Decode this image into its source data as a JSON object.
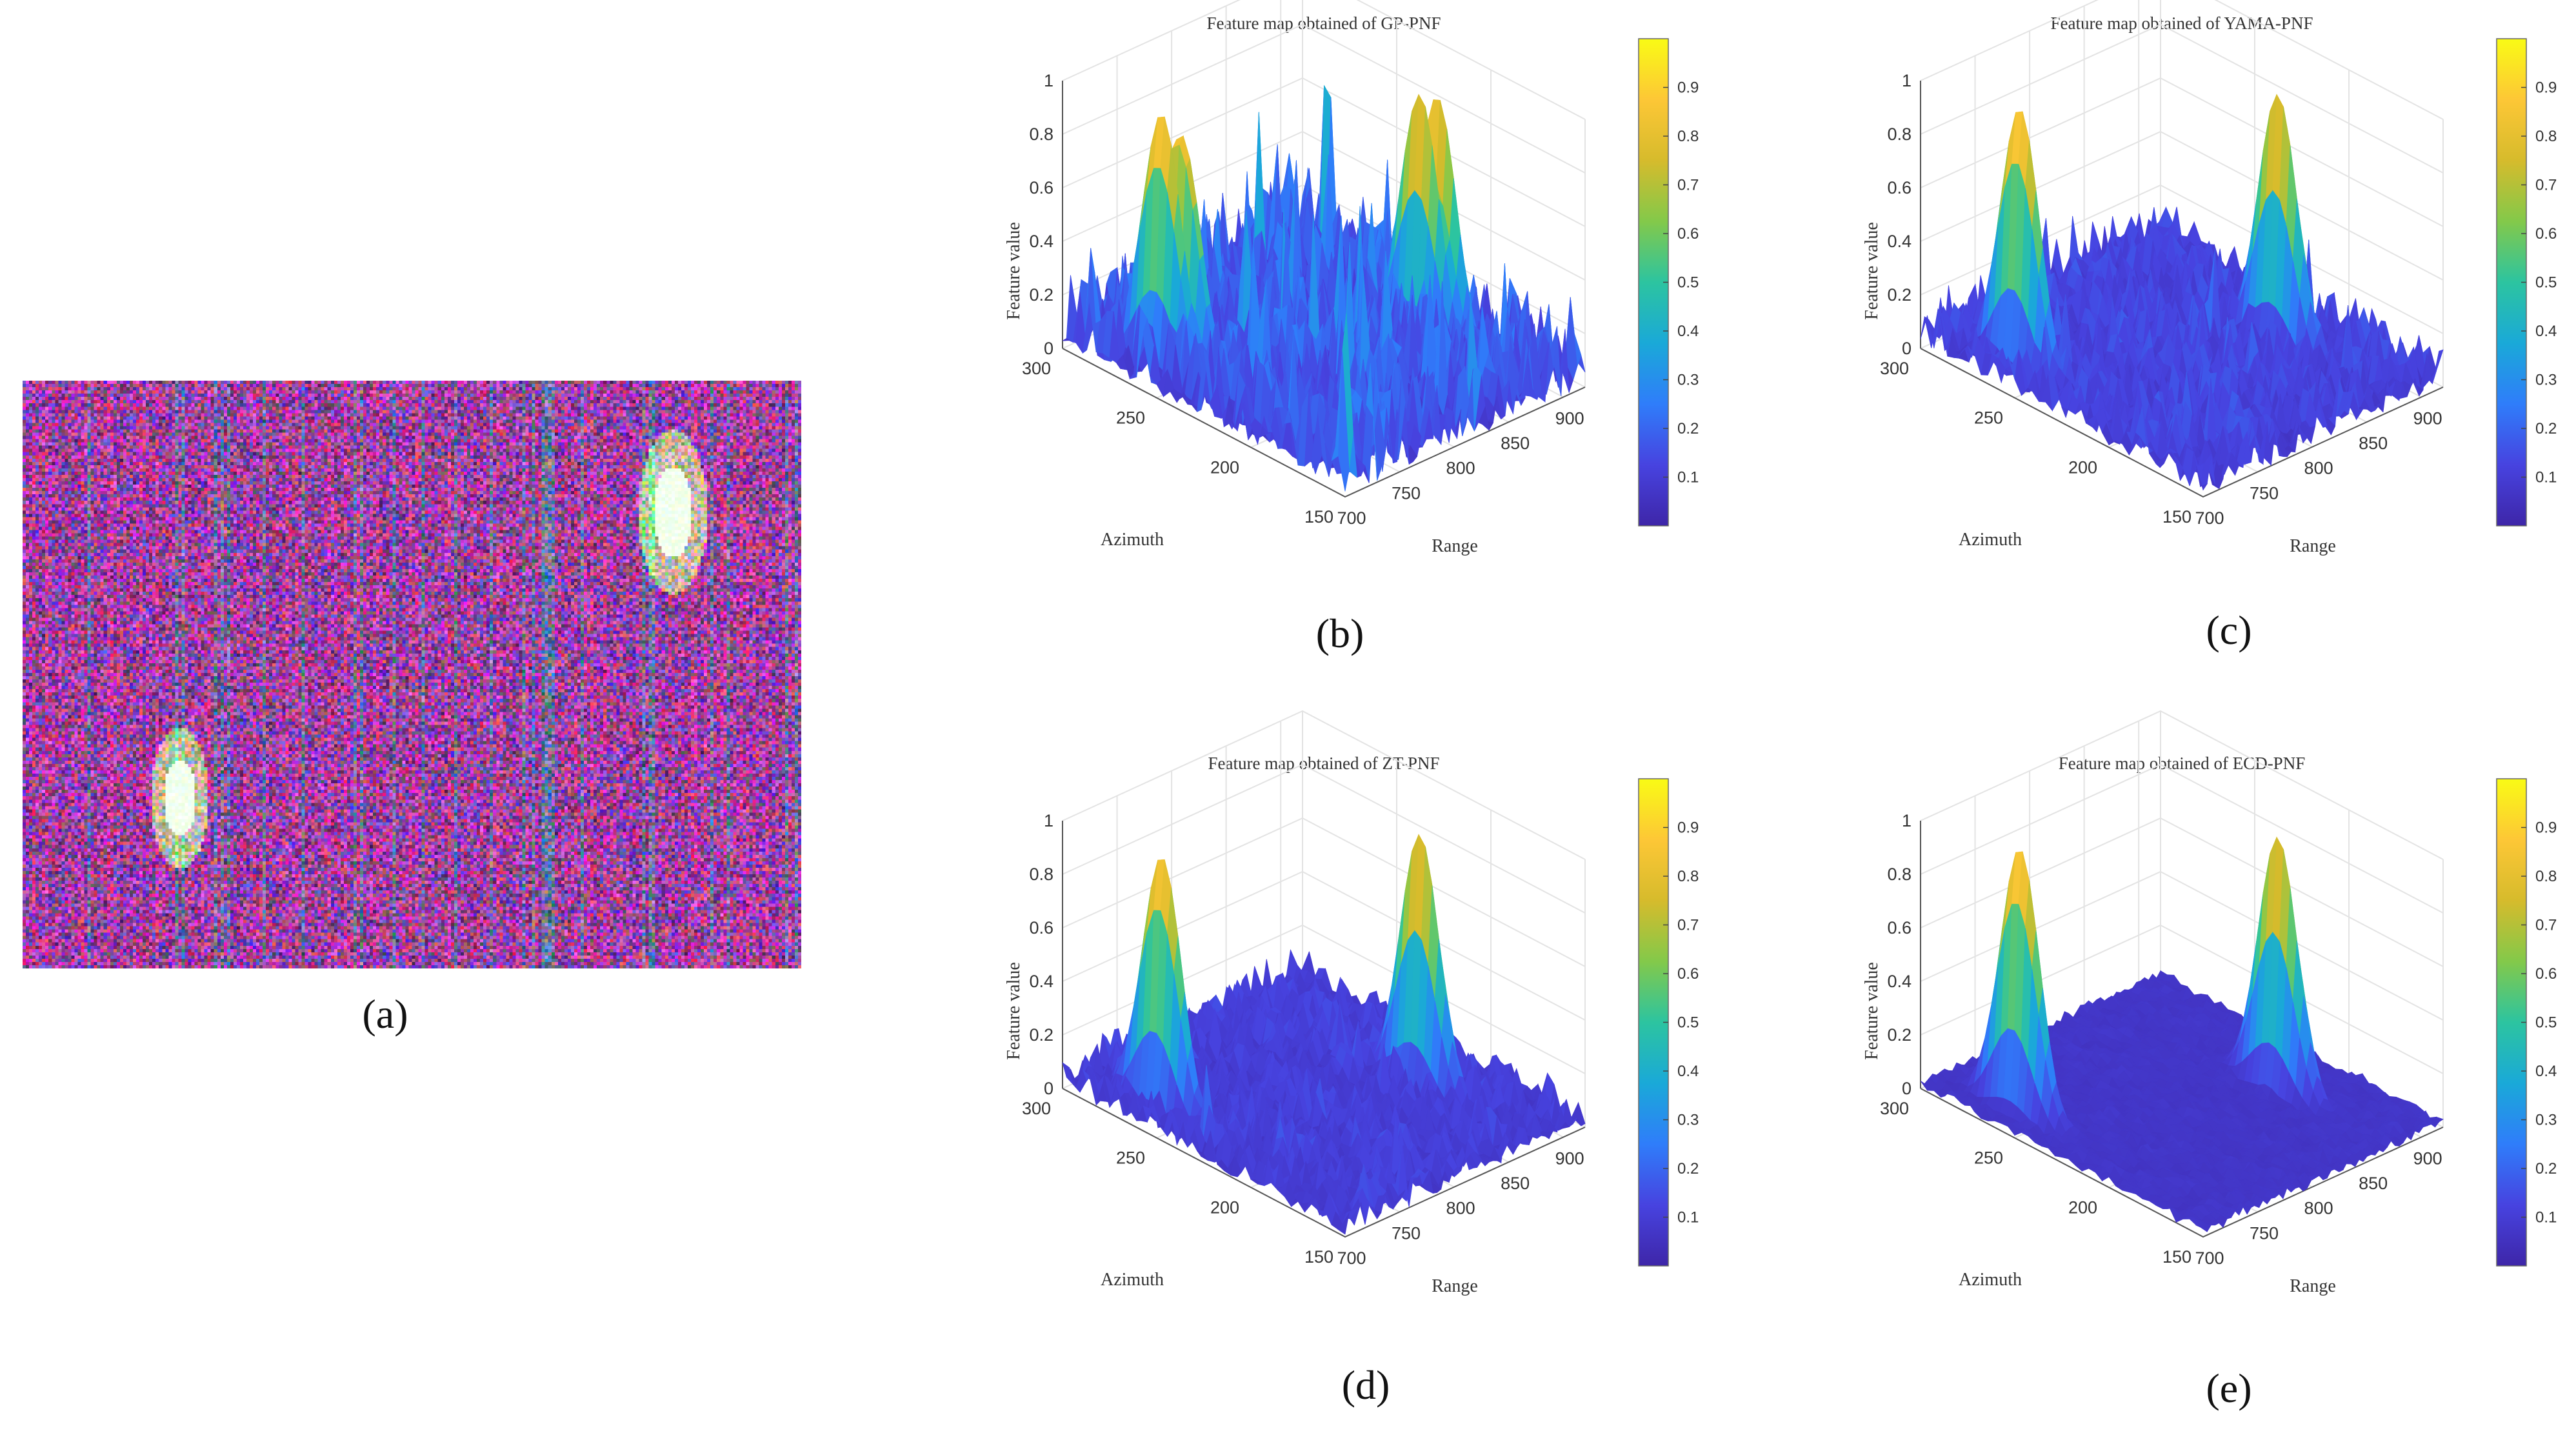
{
  "figure": {
    "panel_a": {
      "caption": "(a)",
      "description_colors": {
        "magenta": "#c040c0",
        "purple": "#5a2a7a",
        "green_white": "#e8ffe0"
      }
    }
  },
  "chart_data": [
    {
      "type": "surface",
      "id": "b",
      "title": "Feature map obtained of GP-PNF",
      "caption": "(b)",
      "xlabel": "Range",
      "ylabel": "Azimuth",
      "zlabel": "Feature value",
      "xlim": [
        700,
        920
      ],
      "ylim": [
        150,
        300
      ],
      "zlim": [
        0,
        1
      ],
      "x_ticks": [
        "700",
        "750",
        "800",
        "850",
        "900"
      ],
      "y_ticks": [
        "150",
        "200",
        "250",
        "300"
      ],
      "z_ticks": [
        "0",
        "0.2",
        "0.4",
        "0.6",
        "0.8",
        "1"
      ],
      "colorbar_ticks": [
        "0.1",
        "0.2",
        "0.3",
        "0.4",
        "0.5",
        "0.6",
        "0.7",
        "0.8",
        "0.9"
      ],
      "peaks": [
        {
          "range": 725,
          "azimuth": 262,
          "value": 0.98
        },
        {
          "range": 735,
          "azimuth": 258,
          "value": 0.95
        },
        {
          "range": 873,
          "azimuth": 210,
          "value": 0.97
        },
        {
          "range": 880,
          "azimuth": 205,
          "value": 0.96
        }
      ],
      "noise_level": 0.28
    },
    {
      "type": "surface",
      "id": "c",
      "title": "Feature map obtained of YAMA-PNF",
      "caption": "(c)",
      "xlabel": "Range",
      "ylabel": "Azimuth",
      "zlabel": "Feature value",
      "xlim": [
        700,
        920
      ],
      "ylim": [
        150,
        300
      ],
      "zlim": [
        0,
        1
      ],
      "x_ticks": [
        "700",
        "750",
        "800",
        "850",
        "900"
      ],
      "y_ticks": [
        "150",
        "200",
        "250",
        "300"
      ],
      "z_ticks": [
        "0",
        "0.2",
        "0.4",
        "0.6",
        "0.8",
        "1"
      ],
      "colorbar_ticks": [
        "0.1",
        "0.2",
        "0.3",
        "0.4",
        "0.5",
        "0.6",
        "0.7",
        "0.8",
        "0.9"
      ],
      "peaks": [
        {
          "range": 725,
          "azimuth": 262,
          "value": 1.0
        },
        {
          "range": 873,
          "azimuth": 210,
          "value": 0.97
        }
      ],
      "noise_level": 0.16
    },
    {
      "type": "surface",
      "id": "d",
      "title": "Feature map obtained of ZT-PNF",
      "caption": "(d)",
      "xlabel": "Range",
      "ylabel": "Azimuth",
      "zlabel": "Feature value",
      "xlim": [
        700,
        920
      ],
      "ylim": [
        150,
        300
      ],
      "zlim": [
        0,
        1
      ],
      "x_ticks": [
        "700",
        "750",
        "800",
        "850",
        "900"
      ],
      "y_ticks": [
        "150",
        "200",
        "250",
        "300"
      ],
      "z_ticks": [
        "0",
        "0.2",
        "0.4",
        "0.6",
        "0.8",
        "1"
      ],
      "colorbar_ticks": [
        "0.1",
        "0.2",
        "0.3",
        "0.4",
        "0.5",
        "0.6",
        "0.7",
        "0.8",
        "0.9"
      ],
      "peaks": [
        {
          "range": 725,
          "azimuth": 262,
          "value": 0.97
        },
        {
          "range": 873,
          "azimuth": 210,
          "value": 0.97
        }
      ],
      "noise_level": 0.12
    },
    {
      "type": "surface",
      "id": "e",
      "title": "Feature map obtained of ECD-PNF",
      "caption": "(e)",
      "xlabel": "Range",
      "ylabel": "Azimuth",
      "zlabel": "Feature value",
      "xlim": [
        700,
        920
      ],
      "ylim": [
        150,
        300
      ],
      "zlim": [
        0,
        1
      ],
      "x_ticks": [
        "700",
        "750",
        "800",
        "850",
        "900"
      ],
      "y_ticks": [
        "150",
        "200",
        "250",
        "300"
      ],
      "z_ticks": [
        "0",
        "0.2",
        "0.4",
        "0.6",
        "0.8",
        "1"
      ],
      "colorbar_ticks": [
        "0.1",
        "0.2",
        "0.3",
        "0.4",
        "0.5",
        "0.6",
        "0.7",
        "0.8",
        "0.9"
      ],
      "peaks": [
        {
          "range": 725,
          "azimuth": 262,
          "value": 1.0
        },
        {
          "range": 873,
          "azimuth": 210,
          "value": 0.96
        }
      ],
      "noise_level": 0.02
    }
  ],
  "colormap": [
    "#3e26a8",
    "#4743e0",
    "#2f7dfa",
    "#1aa9d8",
    "#2cc4a0",
    "#83c94a",
    "#d6bb2c",
    "#fdc736",
    "#f9fb15"
  ]
}
